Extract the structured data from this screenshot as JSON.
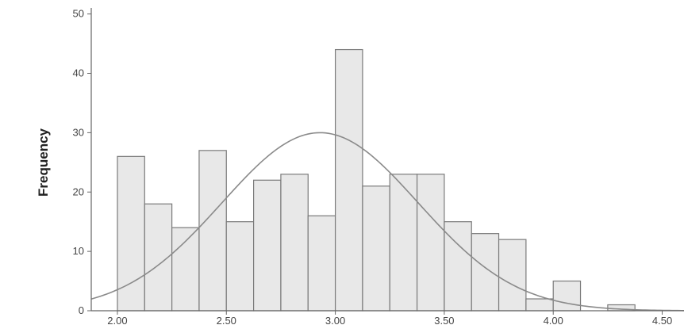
{
  "chart_data": {
    "type": "bar",
    "subtype": "histogram",
    "ylabel": "Frequency",
    "xlabel": "",
    "xlim": [
      1.88,
      4.6
    ],
    "ylim": [
      0,
      50
    ],
    "x_ticks": [
      "2.00",
      "2.50",
      "3.00",
      "3.50",
      "4.00",
      "4.50"
    ],
    "y_ticks": [
      "0",
      "10",
      "20",
      "30",
      "40",
      "50"
    ],
    "bins": [
      {
        "from": 2.0,
        "to": 2.125,
        "count": 26
      },
      {
        "from": 2.125,
        "to": 2.25,
        "count": 18
      },
      {
        "from": 2.25,
        "to": 2.375,
        "count": 14
      },
      {
        "from": 2.375,
        "to": 2.5,
        "count": 27
      },
      {
        "from": 2.5,
        "to": 2.625,
        "count": 15
      },
      {
        "from": 2.625,
        "to": 2.75,
        "count": 22
      },
      {
        "from": 2.75,
        "to": 2.875,
        "count": 23
      },
      {
        "from": 2.875,
        "to": 3.0,
        "count": 16
      },
      {
        "from": 3.0,
        "to": 3.125,
        "count": 44
      },
      {
        "from": 3.125,
        "to": 3.25,
        "count": 21
      },
      {
        "from": 3.25,
        "to": 3.375,
        "count": 23
      },
      {
        "from": 3.375,
        "to": 3.5,
        "count": 23
      },
      {
        "from": 3.5,
        "to": 3.625,
        "count": 15
      },
      {
        "from": 3.625,
        "to": 3.75,
        "count": 13
      },
      {
        "from": 3.75,
        "to": 3.875,
        "count": 12
      },
      {
        "from": 3.875,
        "to": 4.0,
        "count": 2
      },
      {
        "from": 4.0,
        "to": 4.125,
        "count": 5
      },
      {
        "from": 4.25,
        "to": 4.375,
        "count": 1
      }
    ],
    "normal_curve": {
      "mean": 2.93,
      "sd": 0.45,
      "peak": 30
    },
    "grid": false,
    "legend": "none",
    "colors": {
      "bar_fill": "#e8e8e8",
      "bar_stroke": "#7a7a7a",
      "curve": "#8a8a8a",
      "axis": "#666666"
    }
  }
}
